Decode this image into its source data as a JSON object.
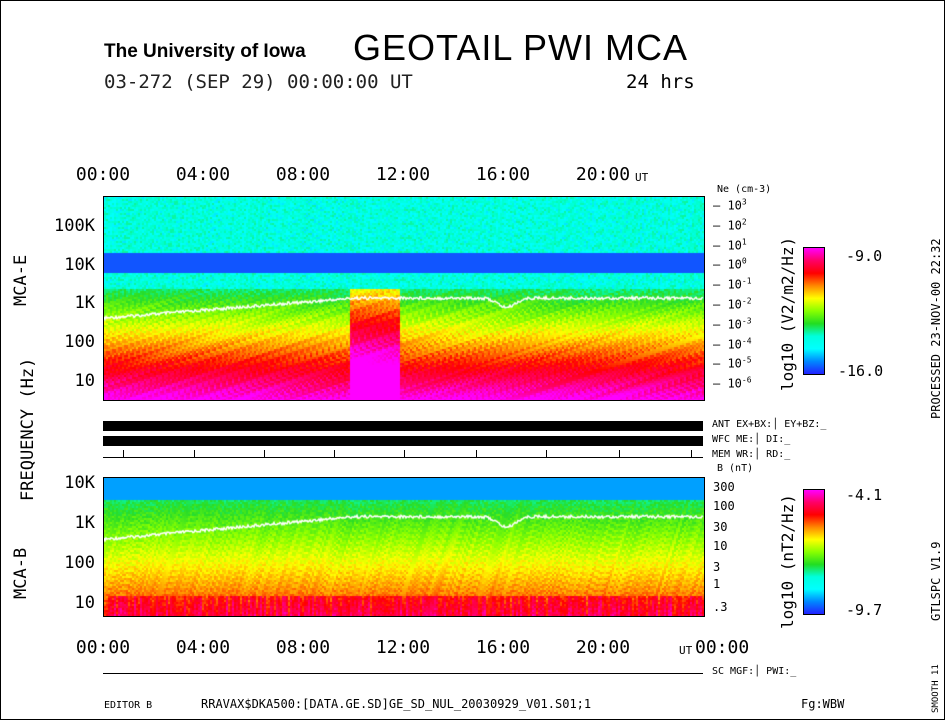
{
  "header": {
    "institution": "The University of Iowa",
    "title": "GEOTAIL PWI MCA",
    "subtitle": "03-272 (SEP 29) 00:00:00 UT",
    "duration": "24 hrs"
  },
  "time_axis": {
    "labels": [
      "00:00",
      "04:00",
      "08:00",
      "12:00",
      "16:00",
      "20:00"
    ],
    "bottom_last": "00:00",
    "unit": "UT"
  },
  "axis_labels": {
    "frequency": "FREQUENCY (Hz)",
    "mca_e": "MCA-E",
    "mca_b": "MCA-B"
  },
  "right_side": {
    "processed": "PROCESSED 23-NOV-00  22:32",
    "version": "GTLSPC   V1.9",
    "smooth": "SMOOTH 11"
  },
  "status": {
    "ant": "ANT EX+BX:│ EY+BZ:_",
    "wfc": "WFC ME:│    DI:_",
    "mem": "MEM WR:│    RD:_",
    "sc": "SC MGF:│    PWI:_"
  },
  "footer": {
    "editor": "EDITOR B",
    "file": "RRAVAX$DKA500:[DATA.GE.SD]GE_SD_NUL_20030929_V01.S01;1",
    "fg": "Fg:WBW"
  },
  "chart_data": [
    {
      "type": "heatmap",
      "name": "MCA-E",
      "xlabel": "UT",
      "ylabel": "Frequency (Hz)",
      "x_range_hours": [
        0,
        24
      ],
      "yticks": [
        "100K",
        "10K",
        "1K",
        "100",
        "10"
      ],
      "colorbar": {
        "label": "log10 (V2/m2/Hz)",
        "max": -9.0,
        "min": -16.0,
        "max_label": "-9.0",
        "min_label": "-16.0"
      },
      "right_axis": {
        "label": "Ne (cm-3)",
        "ticks": [
          "10^3",
          "10^2",
          "10^1",
          "10^0",
          "10^-1",
          "10^-2",
          "10^-3",
          "10^-4",
          "10^-5",
          "10^-6"
        ]
      },
      "overlay_line": "electron plasma frequency ~ 300-2000 Hz, dip near 16:00"
    },
    {
      "type": "heatmap",
      "name": "MCA-B",
      "xlabel": "UT",
      "ylabel": "Frequency (Hz)",
      "x_range_hours": [
        0,
        24
      ],
      "yticks": [
        "10K",
        "1K",
        "100",
        "10"
      ],
      "colorbar": {
        "label": "log10 (nT2/Hz)",
        "max": -4.1,
        "min": -9.7,
        "max_label": "-4.1",
        "min_label": "-9.7"
      },
      "right_axis": {
        "label": "B (nT)",
        "ticks": [
          "300",
          "100",
          "30",
          "10",
          "3",
          "1",
          ".3"
        ]
      },
      "overlay_line": "magnetic field ~ 300-1500 Hz, dip near 16:00"
    }
  ]
}
